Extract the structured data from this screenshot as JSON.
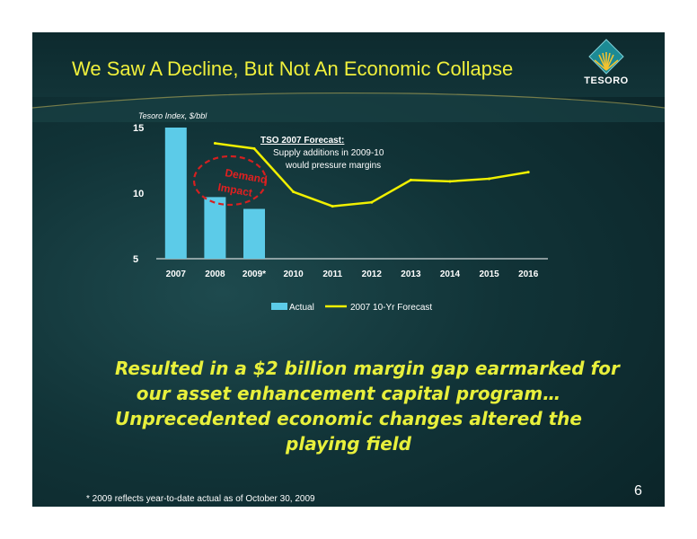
{
  "slide": {
    "title": "We Saw A Decline, But Not An Economic Collapse",
    "logo_text": "TESORO",
    "takeaway_lines": [
      "Resulted in a $2 billion margin gap earmarked for",
      "our asset enhancement capital program…",
      "Unprecedented economic changes altered the",
      "playing field"
    ],
    "footnote": "* 2009 reflects year-to-date actual as of October 30, 2009",
    "page_number": "6"
  },
  "colors": {
    "title": "#f0f03c",
    "bar": "#5ccbe8",
    "forecast_line": "#f0f000",
    "annotation_circle": "#d42020",
    "takeaway": "#e8f03c"
  },
  "chart_data": {
    "type": "bar",
    "ylabel": "Tesoro Index, $/bbl",
    "ylim": [
      5,
      15
    ],
    "yticks": [
      5,
      10,
      15
    ],
    "categories": [
      "2007",
      "2008",
      "2009*",
      "2010",
      "2011",
      "2012",
      "2013",
      "2014",
      "2015",
      "2016"
    ],
    "series": [
      {
        "name": "Actual",
        "kind": "bar",
        "values": [
          15,
          9.7,
          8.8,
          null,
          null,
          null,
          null,
          null,
          null,
          null
        ]
      },
      {
        "name": "2007 10-Yr Forecast",
        "kind": "line",
        "values": [
          null,
          13.8,
          13.4,
          10.1,
          9.0,
          9.3,
          11.0,
          10.9,
          11.1,
          11.6
        ]
      }
    ],
    "annotations": {
      "forecast_heading": "TSO 2007 Forecast:",
      "forecast_body": [
        "Supply additions in 2009-10",
        "would pressure margins"
      ],
      "demand_impact": [
        "Demand",
        "Impact"
      ]
    },
    "legend_position": "bottom"
  }
}
